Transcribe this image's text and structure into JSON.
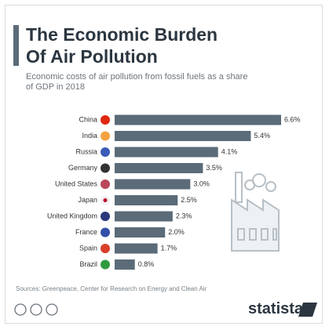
{
  "chart_data": {
    "type": "hbar",
    "title": "The Economic Burden Of Air Pollution",
    "subtitle": "Economic costs of air pollution from fossil fuels as a share of GDP in 2018",
    "categories": [
      "China",
      "India",
      "Russia",
      "Germany",
      "United States",
      "Japan",
      "United Kingdom",
      "France",
      "Spain",
      "Brazil"
    ],
    "values": [
      6.6,
      5.4,
      4.1,
      3.5,
      3.0,
      2.5,
      2.3,
      2.0,
      1.7,
      0.8
    ],
    "value_labels": [
      "6.6%",
      "5.4%",
      "4.1%",
      "3.5%",
      "3.0%",
      "2.5%",
      "2.3%",
      "2.0%",
      "1.7%",
      "0.8%"
    ],
    "color": "#5b6b78",
    "source": "Sources: Greenpeace, Center for Research on Energy and Clean Air",
    "brand": "statista"
  }
}
